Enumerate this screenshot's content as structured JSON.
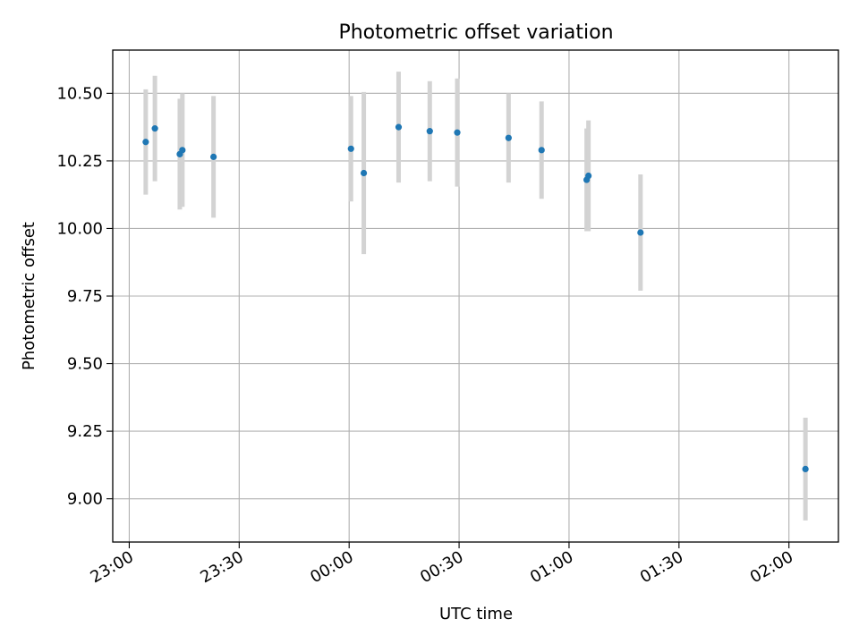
{
  "chart_data": {
    "type": "scatter",
    "title": "Photometric offset variation",
    "xlabel": "UTC time",
    "ylabel": "Photometric offset",
    "x_tick_labels": [
      "23:00",
      "23:30",
      "00:00",
      "00:30",
      "01:00",
      "01:30",
      "02:00"
    ],
    "x_ticks_minutes": [
      0,
      30,
      60,
      90,
      120,
      150,
      180
    ],
    "y_ticks": [
      9.0,
      9.25,
      9.5,
      9.75,
      10.0,
      10.25,
      10.5
    ],
    "y_tick_labels": [
      "9.00",
      "9.25",
      "9.50",
      "9.75",
      "10.00",
      "10.25",
      "10.50"
    ],
    "xlim_minutes": [
      -4.5,
      193.5
    ],
    "ylim": [
      8.84,
      10.66
    ],
    "grid": true,
    "marker_color": "#1f77b4",
    "errorbar_color": "#d3d3d3",
    "series": [
      {
        "points": [
          {
            "t": 4.5,
            "y": 10.32,
            "err": 0.195
          },
          {
            "t": 7.0,
            "y": 10.37,
            "err": 0.195
          },
          {
            "t": 13.8,
            "y": 10.275,
            "err": 0.205
          },
          {
            "t": 14.5,
            "y": 10.29,
            "err": 0.21
          },
          {
            "t": 23.0,
            "y": 10.265,
            "err": 0.225
          },
          {
            "t": 60.5,
            "y": 10.295,
            "err": 0.195
          },
          {
            "t": 64.0,
            "y": 10.205,
            "err": 0.3
          },
          {
            "t": 73.5,
            "y": 10.375,
            "err": 0.205
          },
          {
            "t": 82.0,
            "y": 10.36,
            "err": 0.185
          },
          {
            "t": 89.5,
            "y": 10.355,
            "err": 0.2
          },
          {
            "t": 103.5,
            "y": 10.335,
            "err": 0.165
          },
          {
            "t": 112.5,
            "y": 10.29,
            "err": 0.18
          },
          {
            "t": 124.8,
            "y": 10.18,
            "err": 0.19
          },
          {
            "t": 125.3,
            "y": 10.195,
            "err": 0.205
          },
          {
            "t": 139.5,
            "y": 9.985,
            "err": 0.215
          },
          {
            "t": 184.5,
            "y": 9.11,
            "err": 0.19
          }
        ]
      }
    ]
  }
}
